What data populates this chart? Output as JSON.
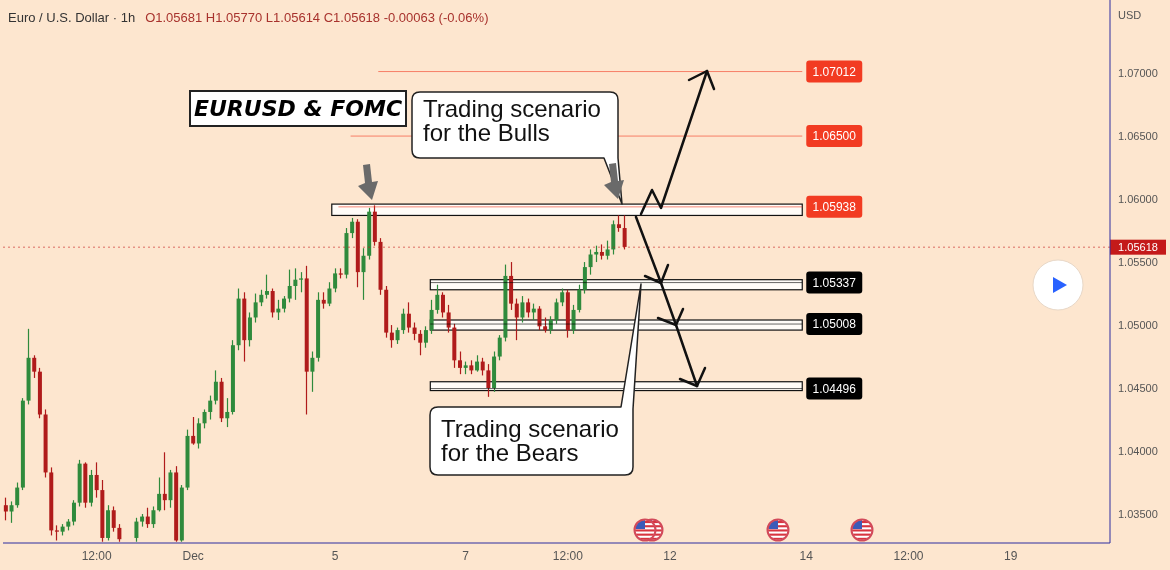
{
  "chart_data": {
    "type": "candlestick",
    "title": "Euro / U.S. Dollar · 1h",
    "subtitle": "O1.05681 H1.05770 L1.05614 C1.05618 -0.00063 (-0.06%)",
    "ylabel": "USD",
    "categories": [
      null,
      null,
      null,
      null,
      null,
      null,
      null,
      null,
      null,
      null,
      null,
      null,
      null,
      null,
      null,
      null,
      "12:00",
      null,
      null,
      null,
      null,
      null,
      null,
      null,
      null,
      null,
      null,
      null,
      null,
      null,
      null,
      null,
      null,
      "Dec",
      null,
      null,
      null,
      null,
      null,
      null,
      null,
      null,
      null,
      null,
      null,
      null,
      null,
      null,
      null,
      null,
      null,
      null,
      null,
      null,
      null,
      null,
      null,
      null,
      "5",
      null,
      null,
      null,
      null,
      null,
      null,
      null,
      null,
      null,
      null,
      null,
      null,
      null,
      null,
      null,
      null,
      null,
      null,
      null,
      null,
      null,
      null,
      "7",
      null,
      null,
      null,
      null,
      null,
      null,
      null,
      null,
      null,
      null,
      null,
      null,
      null,
      null,
      null,
      null,
      null,
      "12:00",
      null,
      null,
      null,
      null,
      null,
      null,
      null,
      null,
      null,
      null,
      null,
      null,
      null,
      null,
      null,
      null,
      null,
      "12",
      null,
      null,
      null,
      null,
      null,
      null,
      null,
      null,
      null,
      null,
      null,
      null,
      null,
      null,
      null,
      null,
      null,
      null,
      null,
      null,
      null,
      null,
      null,
      "14",
      null,
      null,
      null,
      null,
      null,
      null,
      null,
      null,
      null,
      null,
      null,
      null,
      null,
      null,
      null,
      null,
      null,
      "12:00",
      null,
      null,
      null,
      null,
      null,
      null,
      null,
      null,
      null,
      null,
      null,
      null,
      null,
      null,
      null,
      null,
      null,
      "19",
      null,
      null,
      null,
      null,
      null,
      null,
      null,
      null,
      null,
      null,
      null,
      null,
      null,
      null,
      null,
      null,
      null
    ],
    "ohlc": [
      [
        1.0357,
        1.0363,
        1.0345,
        1.0352
      ],
      [
        1.0352,
        1.036,
        1.0343,
        1.0357
      ],
      [
        1.0357,
        1.0375,
        1.0355,
        1.0371
      ],
      [
        1.0371,
        1.0442,
        1.0369,
        1.044
      ],
      [
        1.044,
        1.0497,
        1.0437,
        1.0474
      ],
      [
        1.0474,
        1.0476,
        1.0458,
        1.0463
      ],
      [
        1.0463,
        1.0466,
        1.0426,
        1.0429
      ],
      [
        1.0429,
        1.0433,
        1.0379,
        1.0383
      ],
      [
        1.0383,
        1.0387,
        1.0333,
        1.0337
      ],
      [
        1.0337,
        1.0341,
        1.0329,
        1.0336
      ],
      [
        1.0336,
        1.0342,
        1.0333,
        1.034
      ],
      [
        1.034,
        1.0346,
        1.0337,
        1.0344
      ],
      [
        1.0344,
        1.0361,
        1.0341,
        1.0359
      ],
      [
        1.0359,
        1.0393,
        1.0356,
        1.039
      ],
      [
        1.039,
        1.0391,
        1.0355,
        1.0359
      ],
      [
        1.0359,
        1.0385,
        1.0356,
        1.0381
      ],
      [
        1.0381,
        1.0391,
        1.0363,
        1.0369
      ],
      [
        1.0369,
        1.0377,
        1.0328,
        1.0331
      ],
      [
        1.0331,
        1.0357,
        1.0329,
        1.0353
      ],
      [
        1.0353,
        1.0356,
        1.0336,
        1.0339
      ],
      [
        1.0339,
        1.0342,
        1.0328,
        1.033
      ],
      null,
      null,
      [
        1.0331,
        1.0347,
        1.0328,
        1.0344
      ],
      [
        1.0344,
        1.035,
        1.034,
        1.0348
      ],
      [
        1.0348,
        1.0355,
        1.0339,
        1.0342
      ],
      [
        1.0342,
        1.0356,
        1.0339,
        1.0353
      ],
      [
        1.0353,
        1.0379,
        1.0352,
        1.0366
      ],
      [
        1.0366,
        1.0399,
        1.0353,
        1.0361
      ],
      [
        1.0361,
        1.0385,
        1.0355,
        1.0383
      ],
      [
        1.0383,
        1.0388,
        1.0328,
        1.0329
      ],
      [
        1.0329,
        1.0373,
        1.0328,
        1.0371
      ],
      [
        1.0371,
        1.0417,
        1.0369,
        1.0412
      ],
      [
        1.0412,
        1.0427,
        1.0405,
        1.0406
      ],
      [
        1.0406,
        1.0426,
        1.0402,
        1.0422
      ],
      [
        1.0422,
        1.0433,
        1.0418,
        1.0431
      ],
      [
        1.0431,
        1.0444,
        1.0425,
        1.044
      ],
      [
        1.044,
        1.0464,
        1.0437,
        1.0455
      ],
      [
        1.0455,
        1.0458,
        1.0423,
        1.0426
      ],
      [
        1.0426,
        1.0442,
        1.0419,
        1.0431
      ],
      [
        1.0431,
        1.0488,
        1.0429,
        1.0484
      ],
      [
        1.0484,
        1.0529,
        1.048,
        1.0521
      ],
      [
        1.0521,
        1.0526,
        1.0471,
        1.0488
      ],
      [
        1.0488,
        1.051,
        1.0483,
        1.0506
      ],
      [
        1.0506,
        1.0525,
        1.0502,
        1.0518
      ],
      [
        1.0518,
        1.0528,
        1.0515,
        1.0524
      ],
      [
        1.0524,
        1.054,
        1.0521,
        1.0527
      ],
      [
        1.0527,
        1.0529,
        1.0506,
        1.051
      ],
      [
        1.051,
        1.052,
        1.0504,
        1.0513
      ],
      [
        1.0513,
        1.0523,
        1.051,
        1.0521
      ],
      [
        1.0521,
        1.0544,
        1.0518,
        1.0531
      ],
      [
        1.0531,
        1.0545,
        1.052,
        1.0536
      ],
      [
        1.0536,
        1.0542,
        1.0526,
        1.0537
      ],
      [
        1.0537,
        1.0547,
        1.0429,
        1.0463
      ],
      [
        1.0463,
        1.0479,
        1.0447,
        1.0474
      ],
      [
        1.0474,
        1.0526,
        1.0471,
        1.052
      ],
      [
        1.052,
        1.0526,
        1.0513,
        1.0517
      ],
      [
        1.0517,
        1.0534,
        1.0515,
        1.0529
      ],
      [
        1.0529,
        1.0545,
        1.0526,
        1.0541
      ],
      [
        1.0541,
        1.0545,
        1.0537,
        1.054
      ],
      [
        1.054,
        1.0577,
        1.0537,
        1.0573
      ],
      [
        1.0573,
        1.0585,
        1.0569,
        1.0582
      ],
      [
        1.0582,
        1.0584,
        1.053,
        1.0542
      ],
      [
        1.0542,
        1.0561,
        1.052,
        1.0555
      ],
      [
        1.0555,
        1.0593,
        1.0552,
        1.059
      ],
      [
        1.059,
        1.0595,
        1.0563,
        1.0566
      ],
      [
        1.0566,
        1.0569,
        1.0524,
        1.0528
      ],
      [
        1.0528,
        1.0531,
        1.049,
        1.0494
      ],
      [
        1.0494,
        1.05,
        1.0482,
        1.0488
      ],
      [
        1.0488,
        1.0498,
        1.0485,
        1.0496
      ],
      [
        1.0496,
        1.0513,
        1.0493,
        1.0509
      ],
      [
        1.0509,
        1.0518,
        1.0494,
        1.0498
      ],
      [
        1.0498,
        1.0502,
        1.0488,
        1.0493
      ],
      [
        1.0493,
        1.0496,
        1.0476,
        1.0486
      ],
      [
        1.0486,
        1.0499,
        1.0482,
        1.0496
      ],
      [
        1.0496,
        1.052,
        1.0493,
        1.0512
      ],
      [
        1.0512,
        1.0532,
        1.0509,
        1.0524
      ],
      [
        1.0524,
        1.0526,
        1.0506,
        1.051
      ],
      [
        1.051,
        1.0516,
        1.0494,
        1.0498
      ],
      [
        1.0498,
        1.0501,
        1.0466,
        1.0472
      ],
      [
        1.0472,
        1.0479,
        1.0461,
        1.0466
      ],
      [
        1.0466,
        1.0471,
        1.0461,
        1.0468
      ],
      [
        1.0468,
        1.0472,
        1.0461,
        1.0464
      ],
      [
        1.0464,
        1.0476,
        1.0463,
        1.0471
      ],
      [
        1.0471,
        1.0474,
        1.046,
        1.0464
      ],
      [
        1.0464,
        1.0469,
        1.0443,
        1.045
      ],
      [
        1.045,
        1.0479,
        1.0447,
        1.0475
      ],
      [
        1.0475,
        1.0492,
        1.0472,
        1.049
      ],
      [
        1.049,
        1.0548,
        1.0487,
        1.0539
      ],
      [
        1.0539,
        1.055,
        1.0512,
        1.0517
      ],
      [
        1.0517,
        1.0521,
        1.0488,
        1.0506
      ],
      [
        1.0506,
        1.0523,
        1.0502,
        1.0518
      ],
      [
        1.0518,
        1.0521,
        1.0506,
        1.051
      ],
      [
        1.051,
        1.0517,
        1.0504,
        1.0513
      ],
      [
        1.0513,
        1.0515,
        1.0496,
        1.0499
      ],
      [
        1.0499,
        1.0506,
        1.0494,
        1.0496
      ],
      [
        1.0496,
        1.0507,
        1.0493,
        1.0504
      ],
      [
        1.0504,
        1.0521,
        1.0501,
        1.0518
      ],
      [
        1.0518,
        1.0529,
        1.0515,
        1.0526
      ],
      [
        1.0526,
        1.0528,
        1.049,
        1.0496
      ],
      [
        1.0496,
        1.0516,
        1.0493,
        1.0512
      ],
      [
        1.0512,
        1.0532,
        1.051,
        1.0528
      ],
      [
        1.0528,
        1.055,
        1.0525,
        1.0546
      ],
      [
        1.0546,
        1.056,
        1.054,
        1.0556
      ],
      [
        1.0556,
        1.0563,
        1.055,
        1.0558
      ],
      [
        1.0558,
        1.0564,
        1.0552,
        1.0555
      ],
      [
        1.0555,
        1.0567,
        1.0552,
        1.056
      ],
      [
        1.056,
        1.0583,
        1.0556,
        1.058
      ],
      [
        1.058,
        1.0587,
        1.0574,
        1.0577
      ],
      [
        1.0577,
        1.0587,
        1.056,
        1.0562
      ],
      null,
      null,
      null,
      null,
      null,
      null,
      null,
      null,
      null,
      null,
      null,
      null,
      null,
      null,
      null,
      null,
      null,
      null,
      null,
      null,
      null,
      null,
      null,
      null,
      null,
      null,
      null,
      null,
      null,
      null,
      null,
      null,
      null,
      null,
      null,
      null,
      null,
      null,
      null,
      null,
      null,
      null,
      null,
      null,
      null,
      null,
      null,
      null,
      null,
      null,
      null,
      null,
      null,
      null,
      null,
      null,
      null,
      null,
      null,
      null,
      null,
      null,
      null,
      null,
      null,
      null,
      null,
      null,
      null,
      null,
      null,
      null,
      null,
      null,
      null,
      null,
      null,
      null,
      null,
      null,
      null,
      null,
      null,
      null,
      null
    ],
    "colors": [
      "#b01b1b",
      "#2f8a3c",
      "#2f8a3c",
      "#2f8a3c",
      "#2f8a3c",
      "#b01b1b",
      "#b01b1b",
      "#b01b1b",
      "#b01b1b",
      "#b01b1b",
      "#2f8a3c",
      "#2f8a3c",
      "#2f8a3c",
      "#2f8a3c",
      "#b01b1b",
      "#2f8a3c",
      "#b01b1b",
      "#b01b1b",
      "#2f8a3c",
      "#b01b1b",
      "#b01b1b",
      null,
      null,
      "#2f8a3c",
      "#2f8a3c",
      "#b01b1b",
      "#2f8a3c",
      "#2f8a3c",
      "#b01b1b",
      "#2f8a3c",
      "#b01b1b",
      "#2f8a3c",
      "#2f8a3c",
      "#b01b1b",
      "#2f8a3c",
      "#2f8a3c",
      "#2f8a3c",
      "#2f8a3c",
      "#b01b1b",
      "#2f8a3c",
      "#2f8a3c",
      "#2f8a3c",
      "#b01b1b",
      "#2f8a3c",
      "#2f8a3c",
      "#2f8a3c",
      "#2f8a3c",
      "#b01b1b",
      "#2f8a3c",
      "#2f8a3c",
      "#2f8a3c",
      "#2f8a3c",
      "#2f8a3c",
      "#b01b1b",
      "#2f8a3c",
      "#2f8a3c",
      "#b01b1b",
      "#2f8a3c",
      "#2f8a3c",
      "#b01b1b",
      "#2f8a3c",
      "#2f8a3c",
      "#b01b1b",
      "#2f8a3c",
      "#2f8a3c",
      "#b01b1b",
      "#b01b1b",
      "#b01b1b",
      "#b01b1b",
      "#2f8a3c",
      "#2f8a3c",
      "#b01b1b",
      "#b01b1b",
      "#b01b1b",
      "#2f8a3c",
      "#2f8a3c",
      "#2f8a3c",
      "#b01b1b",
      "#b01b1b",
      "#b01b1b",
      "#b01b1b",
      "#2f8a3c",
      "#b01b1b",
      "#2f8a3c",
      "#b01b1b",
      "#b01b1b",
      "#2f8a3c",
      "#2f8a3c",
      "#2f8a3c",
      "#b01b1b",
      "#b01b1b",
      "#2f8a3c",
      "#b01b1b",
      "#2f8a3c",
      "#b01b1b",
      "#b01b1b",
      "#2f8a3c",
      "#2f8a3c",
      "#2f8a3c",
      "#b01b1b",
      "#2f8a3c",
      "#2f8a3c",
      "#2f8a3c",
      "#2f8a3c",
      "#2f8a3c",
      "#b01b1b",
      "#2f8a3c",
      "#2f8a3c",
      "#b01b1b",
      "#b01b1b",
      null,
      null,
      null,
      null,
      null,
      null,
      null,
      null,
      null,
      null,
      null,
      null,
      null,
      null,
      null,
      null,
      null,
      null,
      null,
      null,
      null,
      null,
      null,
      null,
      null,
      null,
      null,
      null,
      null,
      null,
      null,
      null,
      null,
      null,
      null,
      null,
      null,
      null,
      null,
      null,
      null,
      null,
      null,
      null,
      null,
      null,
      null,
      null,
      null,
      null,
      null,
      null,
      null,
      null,
      null,
      null,
      null,
      null,
      null,
      null,
      null,
      null,
      null,
      null,
      null,
      null,
      null,
      null,
      null,
      null,
      null,
      null,
      null,
      null,
      null,
      null,
      null,
      null,
      null,
      null,
      null,
      null,
      null,
      null,
      null
    ],
    "ylim": [
      1.0327,
      1.0758
    ],
    "yticks": [
      {
        "value": 1.035,
        "label": "1.03500"
      },
      {
        "value": 1.04,
        "label": "1.04000"
      },
      {
        "value": 1.045,
        "label": "1.04500"
      },
      {
        "value": 1.05,
        "label": "1.05000"
      },
      {
        "value": 1.055,
        "label": "1.05500"
      },
      {
        "value": 1.06,
        "label": "1.06000"
      },
      {
        "value": 1.065,
        "label": "1.06500"
      },
      {
        "value": 1.07,
        "label": "1.07000"
      }
    ],
    "bands": [
      {
        "axis": "y",
        "from": 1.0587,
        "to": 1.0596,
        "color": "#ffffff"
      },
      {
        "axis": "y",
        "from": 1.0528,
        "to": 1.0536,
        "color": "#ffffff"
      },
      {
        "axis": "y",
        "from": 1.0496,
        "to": 1.0504,
        "color": "#ffffff"
      },
      {
        "axis": "y",
        "from": 1.0448,
        "to": 1.0455,
        "color": "#ffffff"
      }
    ],
    "ref_lines": [
      {
        "axis": "y",
        "value": 1.07012,
        "label": "1.07012",
        "color": "#f23b22"
      },
      {
        "axis": "y",
        "value": 1.065,
        "label": "1.06500",
        "color": "#f23b22"
      },
      {
        "axis": "y",
        "value": 1.05938,
        "label": "1.05938",
        "color": "#f23b22"
      },
      {
        "axis": "y",
        "value": 1.05618,
        "label": "1.05618",
        "color": "#c41a1a",
        "line_style": "dotted"
      },
      {
        "axis": "y",
        "value": 1.05337,
        "label": "1.05337",
        "color": "#000000"
      },
      {
        "axis": "y",
        "value": 1.05008,
        "label": "1.05008",
        "color": "#000000"
      },
      {
        "axis": "y",
        "value": 1.04496,
        "label": "1.04496",
        "color": "#000000"
      }
    ],
    "annotations": [
      "EURUSD & FOMC",
      "Trading scenario for the Bulls",
      "Trading scenario for the Bears"
    ]
  }
}
